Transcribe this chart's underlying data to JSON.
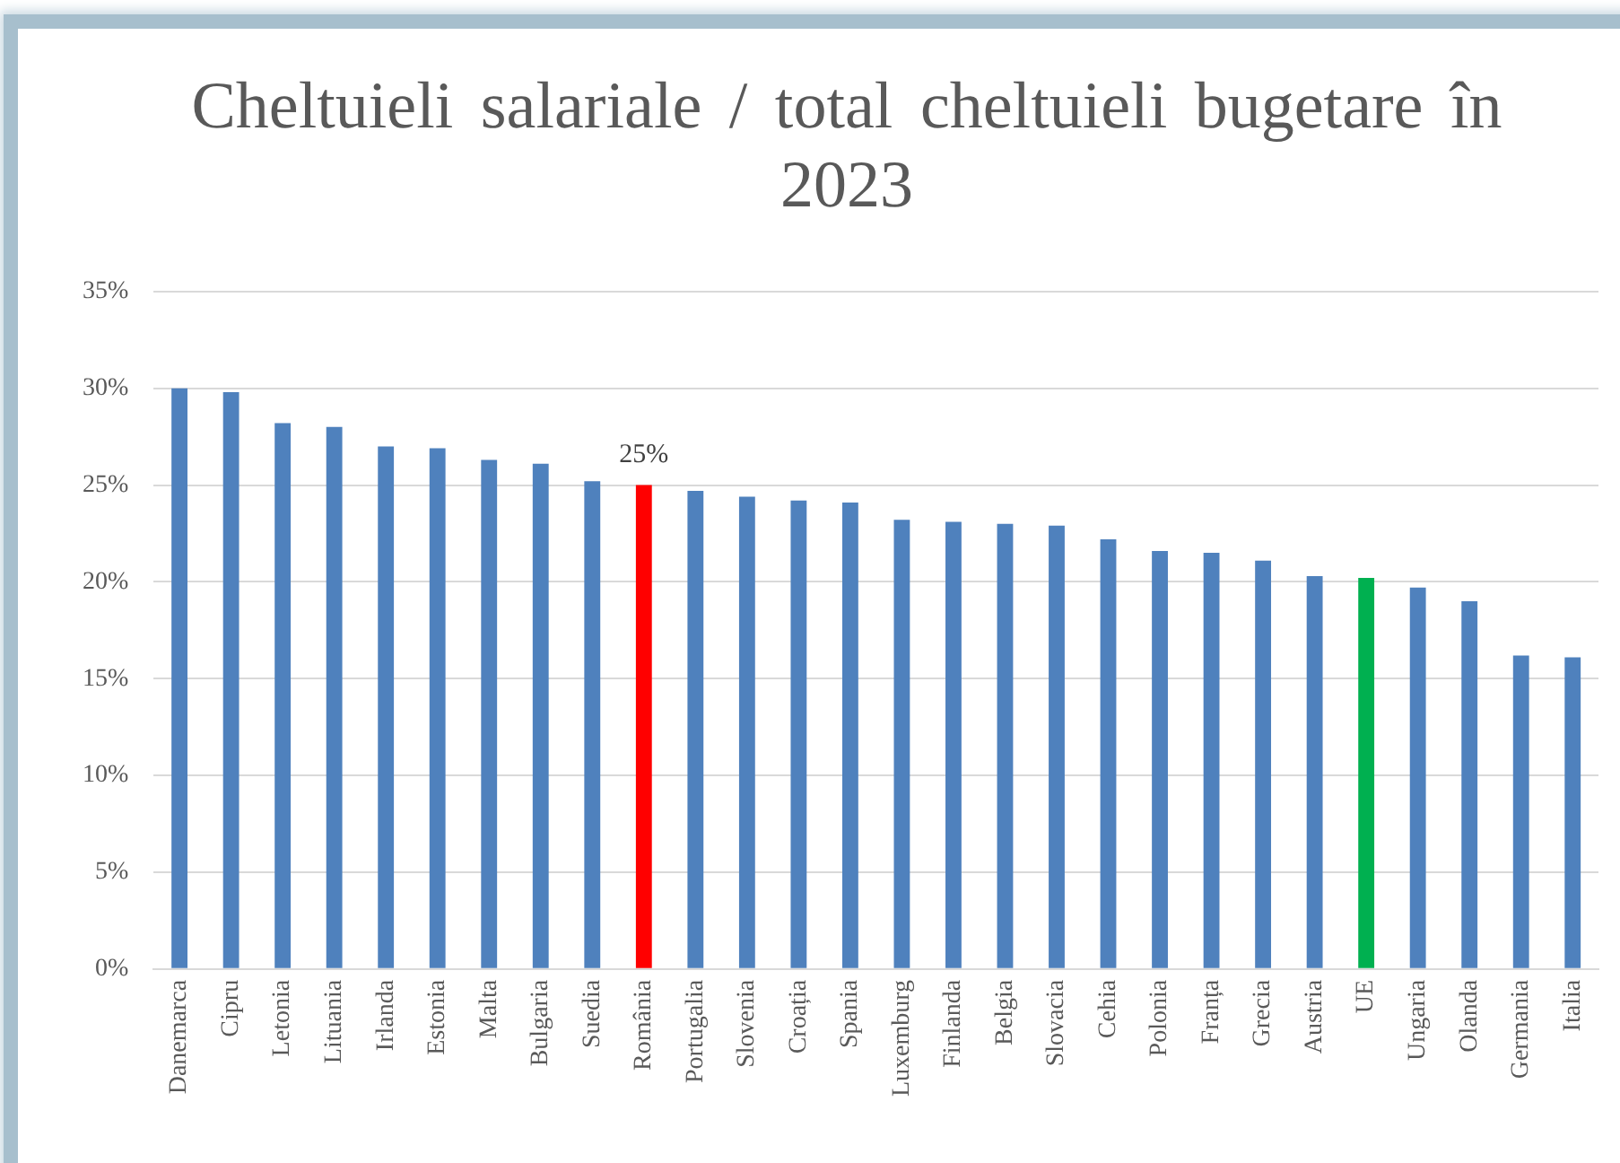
{
  "chart_data": {
    "type": "bar",
    "title": "Cheltuieli salariale / total cheltuieli bugetare în 2023",
    "categories": [
      "Danemarca",
      "Cipru",
      "Letonia",
      "Lituania",
      "Irlanda",
      "Estonia",
      "Malta",
      "Bulgaria",
      "Suedia",
      "România",
      "Portugalia",
      "Slovenia",
      "Croația",
      "Spania",
      "Luxemburg",
      "Finlanda",
      "Belgia",
      "Slovacia",
      "Cehia",
      "Polonia",
      "Franța",
      "Grecia",
      "Austria",
      "UE",
      "Ungaria",
      "Olanda",
      "Germania",
      "Italia"
    ],
    "values": [
      30.0,
      29.8,
      28.2,
      28.0,
      27.0,
      26.9,
      26.3,
      26.1,
      25.2,
      25,
      24.7,
      24.4,
      24.2,
      24.1,
      23.2,
      23.1,
      23.0,
      22.9,
      22.2,
      21.6,
      21.5,
      21.1,
      20.3,
      20.2,
      19.7,
      19.0,
      16.2,
      16.1
    ],
    "colors": [
      "#4f81bd",
      "#4f81bd",
      "#4f81bd",
      "#4f81bd",
      "#4f81bd",
      "#4f81bd",
      "#4f81bd",
      "#4f81bd",
      "#4f81bd",
      "#ff0000",
      "#4f81bd",
      "#4f81bd",
      "#4f81bd",
      "#4f81bd",
      "#4f81bd",
      "#4f81bd",
      "#4f81bd",
      "#4f81bd",
      "#4f81bd",
      "#4f81bd",
      "#4f81bd",
      "#4f81bd",
      "#4f81bd",
      "#00b050",
      "#4f81bd",
      "#4f81bd",
      "#4f81bd",
      "#4f81bd"
    ],
    "value_labels": [
      null,
      null,
      null,
      null,
      null,
      null,
      null,
      null,
      null,
      "25%",
      null,
      null,
      null,
      null,
      null,
      null,
      null,
      null,
      null,
      null,
      null,
      null,
      null,
      null,
      null,
      null,
      null,
      null
    ],
    "ylim": [
      0,
      35
    ],
    "yticks": [
      {
        "value": 0,
        "label": "0%"
      },
      {
        "value": 5,
        "label": "5%"
      },
      {
        "value": 10,
        "label": "10%"
      },
      {
        "value": 15,
        "label": "15%"
      },
      {
        "value": 20,
        "label": "20%"
      },
      {
        "value": 25,
        "label": "25%"
      },
      {
        "value": 30,
        "label": "30%"
      },
      {
        "value": 35,
        "label": "35%"
      }
    ],
    "grid": "y"
  }
}
